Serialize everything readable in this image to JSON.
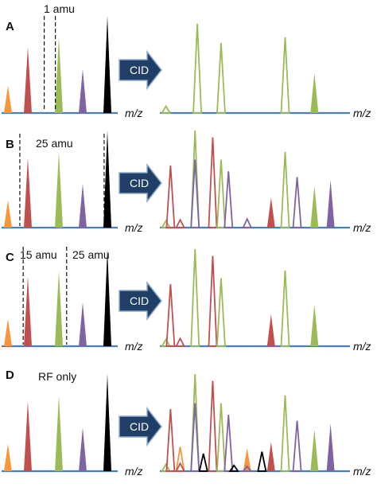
{
  "colors": {
    "orange": "#F7963B",
    "red": "#C0504D",
    "green": "#9BBB59",
    "purple": "#8064A2",
    "black": "#000000",
    "baseline": "#4A7EBB",
    "arrow_fill": "#1F3F66",
    "arrow_stroke": "#8EA9C8"
  },
  "axis_label": "m/z",
  "arrow_label": "CID",
  "panels": [
    {
      "letter": "A",
      "annotation": "1 amu",
      "show_arrow_text": true,
      "precursors": [
        {
          "color": "orange",
          "height": 0.28
        },
        {
          "color": "red",
          "height": 0.68
        },
        {
          "color": "green",
          "height": 0.78
        },
        {
          "color": "purple",
          "height": 0.45
        },
        {
          "color": "black",
          "height": 1.0
        }
      ],
      "window_lines": [
        0.367,
        0.463
      ],
      "fragments": [
        {
          "pos": 0.032,
          "color": "green",
          "height": 0.07,
          "filled": false
        },
        {
          "pos": 0.197,
          "color": "green",
          "height": 0.92,
          "filled": false
        },
        {
          "pos": 0.322,
          "color": "green",
          "height": 0.72,
          "filled": false
        },
        {
          "pos": 0.659,
          "color": "green",
          "height": 0.78,
          "filled": false
        },
        {
          "pos": 0.813,
          "color": "green",
          "height": 0.41,
          "filled": true
        }
      ]
    },
    {
      "letter": "B",
      "annotation": "25 amu",
      "show_arrow_text": true,
      "precursors": [
        {
          "color": "orange",
          "height": 0.28
        },
        {
          "color": "red",
          "height": 0.72
        },
        {
          "color": "green",
          "height": 0.78
        },
        {
          "color": "purple",
          "height": 0.45
        },
        {
          "color": "black",
          "height": 1.0
        }
      ],
      "window_lines": [
        0.157,
        0.883
      ],
      "fragments": [
        {
          "pos": 0.032,
          "color": "green",
          "height": 0.07,
          "filled": false
        },
        {
          "pos": 0.056,
          "color": "red",
          "height": 0.64,
          "filled": false
        },
        {
          "pos": 0.107,
          "color": "red",
          "height": 0.08,
          "filled": false
        },
        {
          "pos": 0.185,
          "color": "green",
          "height": 1.0,
          "filled": false
        },
        {
          "pos": 0.185,
          "color": "purple",
          "height": 0.7,
          "filled": false
        },
        {
          "pos": 0.278,
          "color": "red",
          "height": 0.93,
          "filled": false
        },
        {
          "pos": 0.322,
          "color": "green",
          "height": 0.7,
          "filled": false
        },
        {
          "pos": 0.361,
          "color": "purple",
          "height": 0.58,
          "filled": false
        },
        {
          "pos": 0.459,
          "color": "purple",
          "height": 0.09,
          "filled": false
        },
        {
          "pos": 0.585,
          "color": "red",
          "height": 0.31,
          "filled": true
        },
        {
          "pos": 0.659,
          "color": "green",
          "height": 0.78,
          "filled": false
        },
        {
          "pos": 0.722,
          "color": "purple",
          "height": 0.52,
          "filled": false
        },
        {
          "pos": 0.813,
          "color": "green",
          "height": 0.43,
          "filled": true
        },
        {
          "pos": 0.898,
          "color": "purple",
          "height": 0.49,
          "filled": true
        }
      ]
    },
    {
      "letter": "C",
      "annotation": "15 amu",
      "annotation2": "25 amu",
      "show_arrow_text": true,
      "precursors": [
        {
          "color": "orange",
          "height": 0.28
        },
        {
          "color": "red",
          "height": 0.72
        },
        {
          "color": "green",
          "height": 0.78
        },
        {
          "color": "purple",
          "height": 0.45
        },
        {
          "color": "black",
          "height": 1.0
        }
      ],
      "window_lines": [
        0.186,
        0.56
      ],
      "fragments": [
        {
          "pos": 0.032,
          "color": "green",
          "height": 0.07,
          "filled": false
        },
        {
          "pos": 0.056,
          "color": "red",
          "height": 0.64,
          "filled": false
        },
        {
          "pos": 0.107,
          "color": "red",
          "height": 0.08,
          "filled": false
        },
        {
          "pos": 0.185,
          "color": "green",
          "height": 1.0,
          "filled": false
        },
        {
          "pos": 0.278,
          "color": "red",
          "height": 0.93,
          "filled": false
        },
        {
          "pos": 0.322,
          "color": "green",
          "height": 0.7,
          "filled": false
        },
        {
          "pos": 0.585,
          "color": "red",
          "height": 0.33,
          "filled": true
        },
        {
          "pos": 0.659,
          "color": "green",
          "height": 0.78,
          "filled": false
        },
        {
          "pos": 0.813,
          "color": "green",
          "height": 0.43,
          "filled": true
        }
      ]
    },
    {
      "letter": "D",
      "annotation": "RF only",
      "show_arrow_text": true,
      "precursors": [
        {
          "color": "orange",
          "height": 0.28
        },
        {
          "color": "red",
          "height": 0.72
        },
        {
          "color": "green",
          "height": 0.78
        },
        {
          "color": "purple",
          "height": 0.45
        },
        {
          "color": "black",
          "height": 1.0
        }
      ],
      "window_lines": [],
      "fragments": [
        {
          "pos": 0.032,
          "color": "green",
          "height": 0.07,
          "filled": false
        },
        {
          "pos": 0.056,
          "color": "red",
          "height": 0.64,
          "filled": false
        },
        {
          "pos": 0.107,
          "color": "orange",
          "height": 0.25,
          "filled": false
        },
        {
          "pos": 0.107,
          "color": "red",
          "height": 0.08,
          "filled": false
        },
        {
          "pos": 0.185,
          "color": "green",
          "height": 1.0,
          "filled": false
        },
        {
          "pos": 0.185,
          "color": "purple",
          "height": 0.7,
          "filled": false
        },
        {
          "pos": 0.229,
          "color": "black",
          "height": 0.18,
          "filled": false
        },
        {
          "pos": 0.278,
          "color": "red",
          "height": 0.93,
          "filled": false
        },
        {
          "pos": 0.322,
          "color": "green",
          "height": 0.7,
          "filled": false
        },
        {
          "pos": 0.361,
          "color": "purple",
          "height": 0.58,
          "filled": false
        },
        {
          "pos": 0.39,
          "color": "black",
          "height": 0.06,
          "filled": false
        },
        {
          "pos": 0.459,
          "color": "orange",
          "height": 0.24,
          "filled": true
        },
        {
          "pos": 0.459,
          "color": "purple",
          "height": 0.05,
          "filled": false
        },
        {
          "pos": 0.537,
          "color": "black",
          "height": 0.2,
          "filled": false
        },
        {
          "pos": 0.585,
          "color": "red",
          "height": 0.3,
          "filled": true
        },
        {
          "pos": 0.659,
          "color": "green",
          "height": 0.78,
          "filled": false
        },
        {
          "pos": 0.722,
          "color": "purple",
          "height": 0.52,
          "filled": false
        },
        {
          "pos": 0.813,
          "color": "green",
          "height": 0.43,
          "filled": true
        },
        {
          "pos": 0.898,
          "color": "purple",
          "height": 0.49,
          "filled": true
        }
      ]
    }
  ]
}
